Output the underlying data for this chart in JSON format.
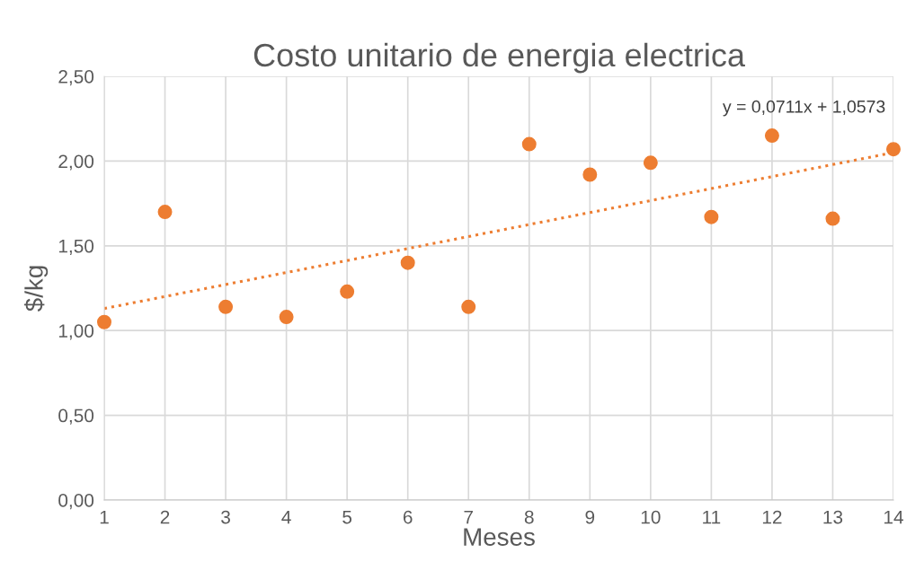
{
  "chart_data": {
    "type": "scatter",
    "title": "Costo unitario de energia electrica",
    "xlabel": "Meses",
    "ylabel": "$/kg",
    "x": [
      1,
      2,
      3,
      4,
      5,
      6,
      7,
      8,
      9,
      10,
      11,
      12,
      13,
      14
    ],
    "series": [
      {
        "color": "#ed7d31",
        "marker": "circle",
        "values": [
          1.05,
          1.7,
          1.14,
          1.08,
          1.23,
          1.4,
          1.14,
          2.1,
          1.92,
          1.99,
          1.67,
          2.15,
          1.66,
          2.07
        ]
      },
      {
        "type": "line",
        "color": "#ed7d31",
        "line_style": "dotted",
        "marker": "none",
        "x": [
          1,
          14
        ],
        "values": [
          1.13,
          2.05
        ]
      }
    ],
    "annotations": [
      "y = 0,0711x + 1,0573"
    ],
    "xlim": [
      1,
      14
    ],
    "xticks": [
      1,
      2,
      3,
      4,
      5,
      6,
      7,
      8,
      9,
      10,
      11,
      12,
      13,
      14
    ],
    "ylim": [
      0,
      2.5
    ],
    "yticks": [
      {
        "value": 0,
        "label": "0,00"
      },
      {
        "value": 0.5,
        "label": "0,50"
      },
      {
        "value": 1,
        "label": "1,00"
      },
      {
        "value": 1.5,
        "label": "1,50"
      },
      {
        "value": 2,
        "label": "2,00"
      },
      {
        "value": 2.5,
        "label": "2,50"
      }
    ],
    "grid": true,
    "legend": false
  }
}
